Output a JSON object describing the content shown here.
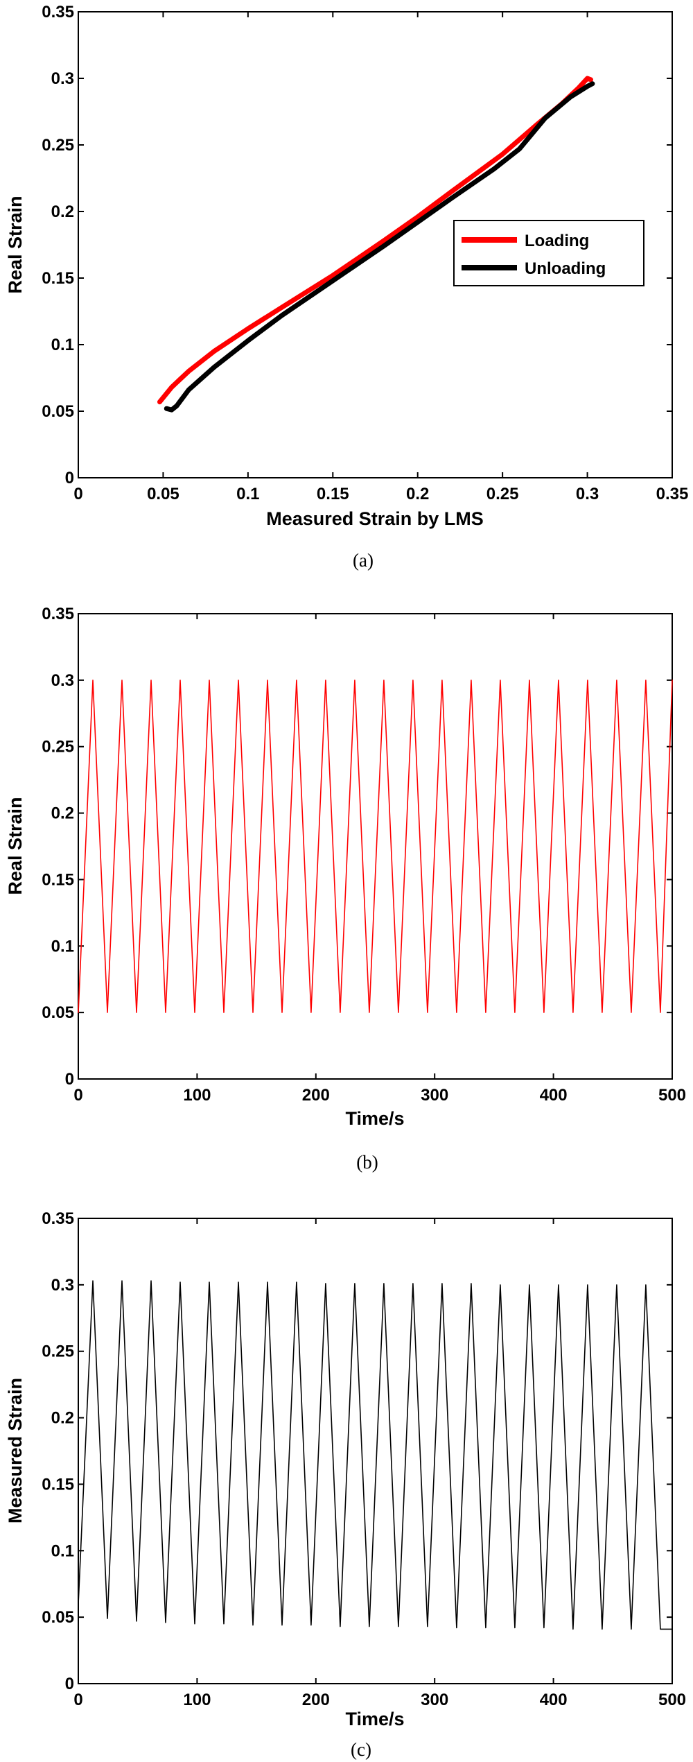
{
  "chart_data": [
    {
      "panel": "(a)",
      "type": "line",
      "xlabel": "Measured Strain by LMS",
      "ylabel": "Real Strain",
      "xlim": [
        0,
        0.35
      ],
      "ylim": [
        0,
        0.35
      ],
      "xticks": [
        "0",
        "0.05",
        "0.1",
        "0.15",
        "0.2",
        "0.25",
        "0.3",
        "0.35"
      ],
      "yticks": [
        "0",
        "0.05",
        "0.1",
        "0.15",
        "0.2",
        "0.25",
        "0.3",
        "0.35"
      ],
      "grid": false,
      "legend_position": "right",
      "series": [
        {
          "name": "Loading",
          "color": "#ff0000",
          "x": [
            0.048,
            0.055,
            0.065,
            0.08,
            0.1,
            0.12,
            0.15,
            0.18,
            0.2,
            0.22,
            0.25,
            0.27,
            0.285,
            0.295,
            0.3,
            0.302
          ],
          "y": [
            0.057,
            0.068,
            0.08,
            0.095,
            0.112,
            0.128,
            0.152,
            0.178,
            0.196,
            0.215,
            0.243,
            0.265,
            0.281,
            0.293,
            0.3,
            0.299
          ]
        },
        {
          "name": "Unloading",
          "color": "#000000",
          "x": [
            0.303,
            0.3,
            0.29,
            0.275,
            0.26,
            0.245,
            0.22,
            0.2,
            0.18,
            0.15,
            0.12,
            0.1,
            0.08,
            0.065,
            0.058,
            0.055,
            0.052
          ],
          "y": [
            0.296,
            0.294,
            0.286,
            0.27,
            0.247,
            0.232,
            0.21,
            0.192,
            0.174,
            0.148,
            0.122,
            0.103,
            0.083,
            0.066,
            0.054,
            0.051,
            0.052
          ]
        }
      ]
    },
    {
      "panel": "(b)",
      "type": "line",
      "xlabel": "Time/s",
      "ylabel": "Real Strain",
      "xlim": [
        0,
        500
      ],
      "ylim": [
        0,
        0.35
      ],
      "xticks": [
        "0",
        "100",
        "200",
        "300",
        "400",
        "500"
      ],
      "yticks": [
        "0",
        "0.05",
        "0.1",
        "0.15",
        "0.2",
        "0.25",
        "0.3",
        "0.35"
      ],
      "grid": false,
      "series": [
        {
          "color": "#ff0000",
          "x": [
            0,
            12.25,
            24.5,
            36.75,
            49,
            61.25,
            73.5,
            85.75,
            98,
            110.25,
            122.5,
            134.75,
            147,
            159.25,
            171.5,
            183.75,
            196,
            208.25,
            220.5,
            232.75,
            245,
            257.25,
            269.5,
            281.75,
            294,
            306.25,
            318.5,
            330.75,
            343,
            355.25,
            367.5,
            379.75,
            392,
            404.25,
            416.5,
            428.75,
            441,
            453.25,
            465.5,
            477.75,
            490,
            500
          ],
          "y": [
            0.05,
            0.3,
            0.05,
            0.3,
            0.05,
            0.3,
            0.05,
            0.3,
            0.05,
            0.3,
            0.05,
            0.3,
            0.05,
            0.3,
            0.05,
            0.3,
            0.05,
            0.3,
            0.05,
            0.3,
            0.05,
            0.3,
            0.05,
            0.3,
            0.05,
            0.3,
            0.05,
            0.3,
            0.05,
            0.3,
            0.05,
            0.3,
            0.05,
            0.3,
            0.05,
            0.3,
            0.05,
            0.3,
            0.05,
            0.3,
            0.05,
            0.3
          ]
        }
      ]
    },
    {
      "panel": "(c)",
      "type": "line",
      "xlabel": "Time/s",
      "ylabel": "Measured Strain",
      "xlim": [
        0,
        500
      ],
      "ylim": [
        0,
        0.35
      ],
      "xticks": [
        "0",
        "100",
        "200",
        "300",
        "400",
        "500"
      ],
      "yticks": [
        "0",
        "0.05",
        "0.1",
        "0.15",
        "0.2",
        "0.25",
        "0.3",
        "0.35"
      ],
      "grid": false,
      "series": [
        {
          "color": "#000000",
          "x": [
            0,
            12.25,
            24.5,
            36.75,
            49,
            61.25,
            73.5,
            85.75,
            98,
            110.25,
            122.5,
            134.75,
            147,
            159.25,
            171.5,
            183.75,
            196,
            208.25,
            220.5,
            232.75,
            245,
            257.25,
            269.5,
            281.75,
            294,
            306.25,
            318.5,
            330.75,
            343,
            355.25,
            367.5,
            379.75,
            392,
            404.25,
            416.5,
            428.75,
            441,
            453.25,
            465.5,
            477.75,
            490,
            500
          ],
          "y": [
            0.06,
            0.303,
            0.049,
            0.303,
            0.047,
            0.303,
            0.046,
            0.302,
            0.045,
            0.302,
            0.045,
            0.302,
            0.044,
            0.302,
            0.044,
            0.302,
            0.044,
            0.301,
            0.043,
            0.301,
            0.043,
            0.301,
            0.043,
            0.301,
            0.043,
            0.301,
            0.042,
            0.301,
            0.042,
            0.3,
            0.042,
            0.3,
            0.042,
            0.3,
            0.041,
            0.3,
            0.041,
            0.3,
            0.041,
            0.3,
            0.041,
            0.041
          ]
        }
      ]
    }
  ],
  "captions": [
    "(a)",
    "(b)",
    "(c)"
  ]
}
